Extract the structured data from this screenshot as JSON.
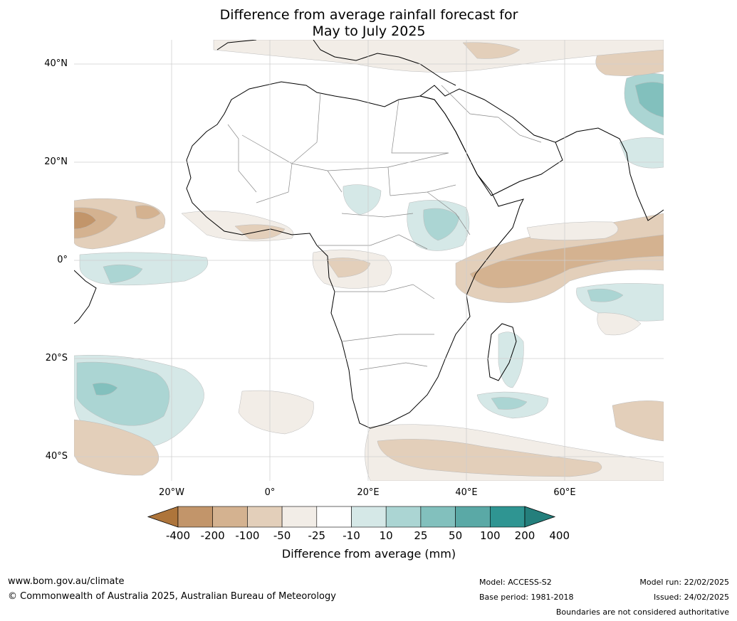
{
  "title": {
    "line1": "Difference from average rainfall forecast for",
    "line2": "May to July 2025"
  },
  "lat_labels": [
    "40°N",
    "20°N",
    "0°",
    "20°S",
    "40°S"
  ],
  "lon_labels": [
    "20°W",
    "0°",
    "20°E",
    "40°E",
    "60°E"
  ],
  "colorbar": {
    "ticks": [
      "-400",
      "-200",
      "-100",
      "-50",
      "-25",
      "-10",
      "10",
      "25",
      "50",
      "100",
      "200",
      "400"
    ],
    "colors": [
      "#ae753b",
      "#c2956a",
      "#d4b290",
      "#e3cfba",
      "#f2ede7",
      "#ffffff",
      "#d5e8e7",
      "#abd5d3",
      "#82c0bd",
      "#5aa9a6",
      "#2f9592",
      "#247f7c"
    ],
    "label": "Difference from average (mm)"
  },
  "footer": {
    "url": "www.bom.gov.au/climate",
    "copyright": "© Commonwealth of Australia 2025, Australian Bureau of Meteorology",
    "model": "Model: ACCESS-S2",
    "base_period": "Base period: 1981-2018",
    "model_run": "Model run: 22/02/2025",
    "issued": "Issued: 24/02/2025",
    "disclaimer": "Boundaries are not considered authoritative"
  }
}
